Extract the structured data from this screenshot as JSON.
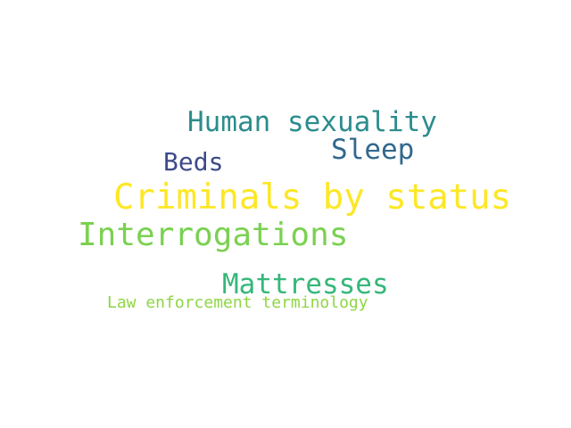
{
  "words": [
    {
      "text": "Criminals by status",
      "color": "#fde725"
    },
    {
      "text": "Interrogations",
      "color": "#7ad151"
    },
    {
      "text": "Human sexuality",
      "color": "#2c8c8e"
    },
    {
      "text": "Mattresses",
      "color": "#35b779"
    },
    {
      "text": "Sleep",
      "color": "#31688e"
    },
    {
      "text": "Beds",
      "color": "#3e4a89"
    },
    {
      "text": "Law enforcement terminology",
      "color": "#8ed645"
    }
  ]
}
